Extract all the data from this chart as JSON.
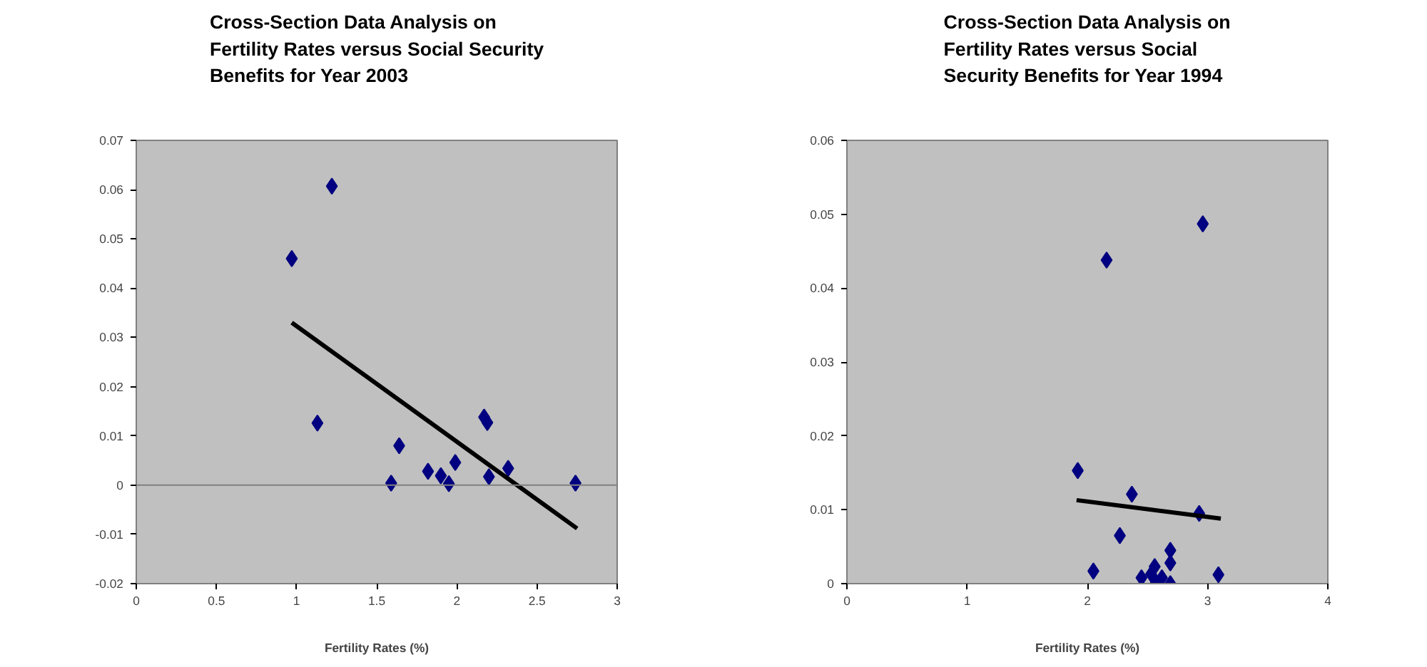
{
  "chart_data": [
    {
      "type": "scatter",
      "title": "Cross-Section Data Analysis on Fertility Rates versus Social Security Benefits for Year 2003",
      "xlabel": "Fertility Rates (%)",
      "xlim": [
        0,
        3
      ],
      "ylim": [
        -0.02,
        0.07
      ],
      "xticks": [
        0,
        0.5,
        1,
        1.5,
        2,
        2.5,
        3
      ],
      "yticks": [
        -0.02,
        -0.01,
        0,
        0.01,
        0.02,
        0.03,
        0.04,
        0.05,
        0.06,
        0.07
      ],
      "grid": false,
      "ref_lines": [
        {
          "axis": "y",
          "value": 0,
          "color": "#808080"
        }
      ],
      "series": [
        {
          "marker": "diamond",
          "color": "#000080",
          "x": [
            0.97,
            1.22,
            1.13,
            1.59,
            1.64,
            1.82,
            1.9,
            1.95,
            1.99,
            2.17,
            2.19,
            2.2,
            2.32,
            2.74
          ],
          "values": [
            0.046,
            0.0607,
            0.0126,
            0.0004,
            0.008,
            0.0028,
            0.0019,
            0.0003,
            0.0046,
            0.0138,
            0.0127,
            0.0017,
            0.0034,
            0.0004
          ]
        },
        {
          "type": "line",
          "color": "#000000",
          "x": [
            0.97,
            2.75
          ],
          "values": [
            0.033,
            -0.0088
          ]
        }
      ]
    },
    {
      "type": "scatter",
      "title": "Cross-Section Data Analysis on Fertility Rates versus Social Security Benefits for Year 1994",
      "xlabel": "Fertility Rates (%)",
      "xlim": [
        0,
        4
      ],
      "ylim": [
        0,
        0.06
      ],
      "xticks": [
        0,
        1,
        2,
        3,
        4
      ],
      "yticks": [
        0,
        0.01,
        0.02,
        0.03,
        0.04,
        0.05,
        0.06
      ],
      "grid": false,
      "series": [
        {
          "marker": "diamond",
          "color": "#000080",
          "x": [
            1.92,
            2.16,
            2.96,
            2.05,
            2.27,
            2.37,
            2.93,
            3.09,
            2.69,
            2.69,
            2.45,
            2.53,
            2.56,
            2.62,
            2.57,
            2.69
          ],
          "values": [
            0.0153,
            0.0438,
            0.0487,
            0.0017,
            0.0065,
            0.0121,
            0.0095,
            0.0012,
            0.0045,
            0.0028,
            0.0008,
            0.0013,
            0.0023,
            0.0008,
            0.0002,
            0.0
          ]
        },
        {
          "type": "line",
          "color": "#000000",
          "x": [
            1.91,
            3.11
          ],
          "values": [
            0.0113,
            0.0088
          ]
        }
      ]
    }
  ]
}
